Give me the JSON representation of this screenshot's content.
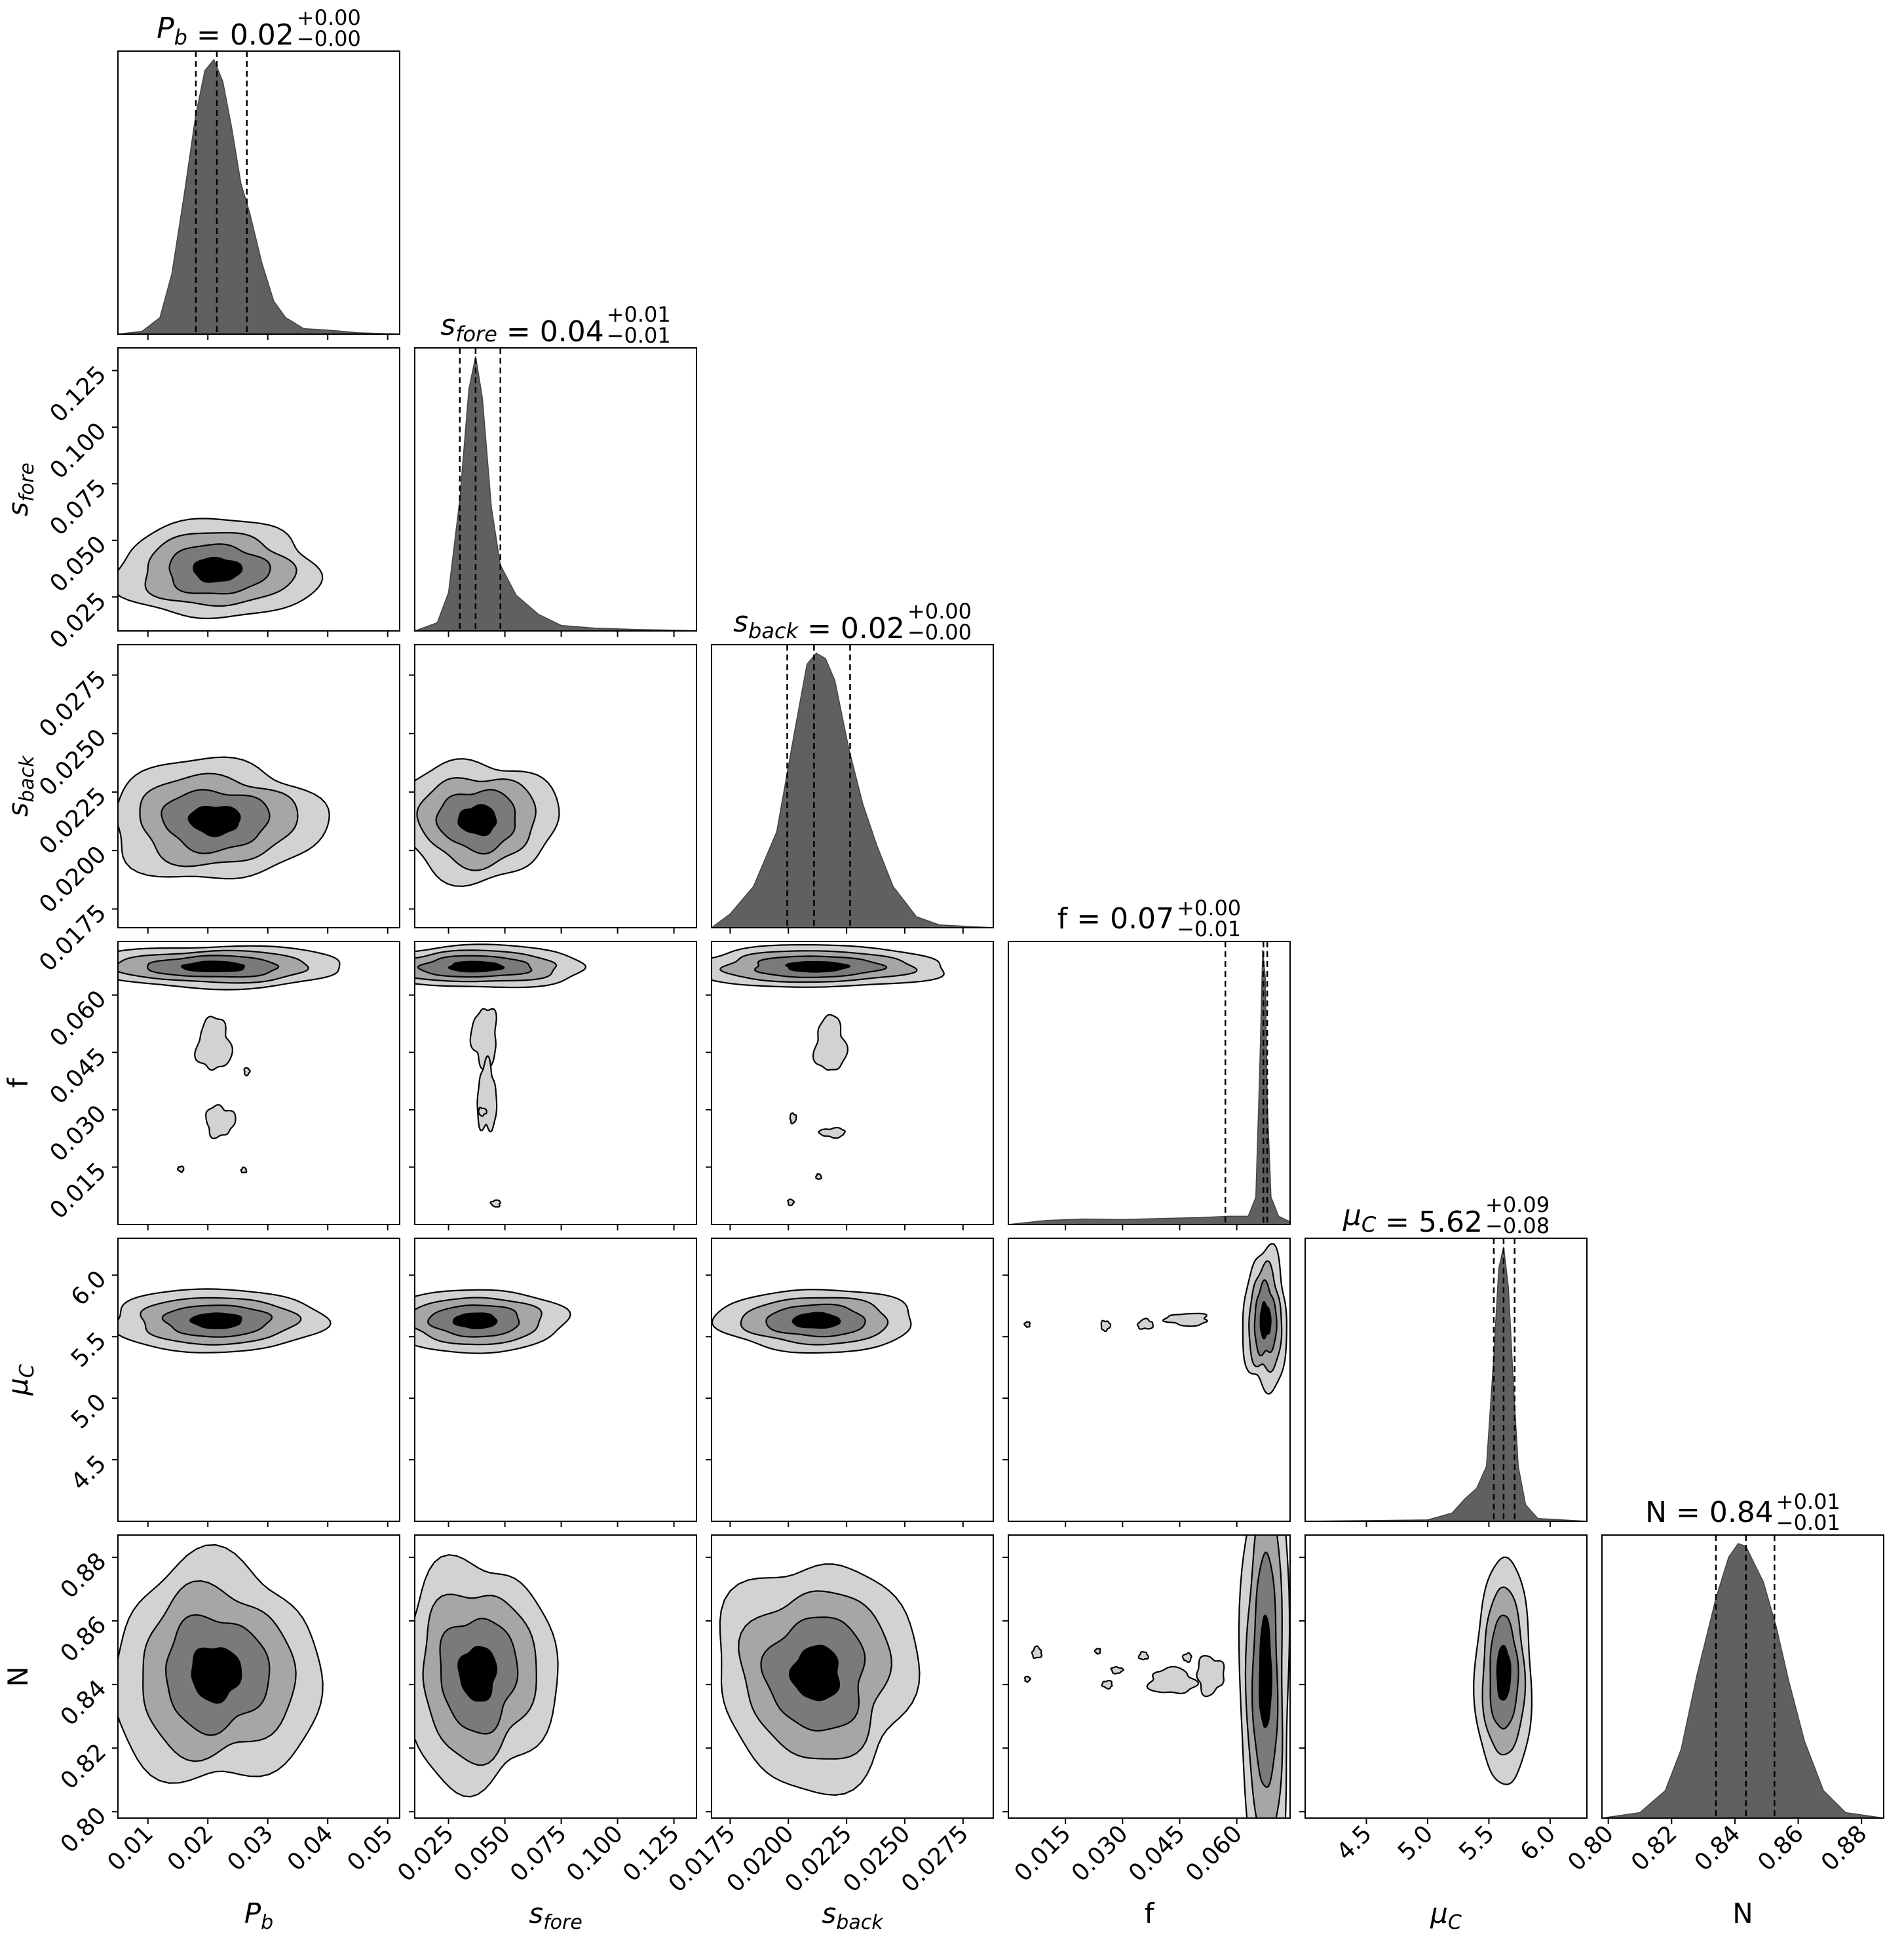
{
  "chart_data": {
    "type": "corner",
    "params": [
      {
        "key": "Pb",
        "label_html": "P<tspan font-style='italic' font-size='34' dy='10'></tspan>",
        "label": "P_b",
        "range": [
          0.005,
          0.052
        ],
        "ticks": [
          0.01,
          0.02,
          0.03,
          0.04,
          0.05
        ],
        "tick_labels": [
          "0.01",
          "0.02",
          "0.03",
          "0.04",
          "0.05"
        ]
      },
      {
        "key": "sfore",
        "label": "s_fore",
        "range": [
          0.01,
          0.135
        ],
        "ticks": [
          0.025,
          0.05,
          0.075,
          0.1,
          0.125
        ],
        "tick_labels": [
          "0.025",
          "0.050",
          "0.075",
          "0.100",
          "0.125"
        ]
      },
      {
        "key": "sback",
        "label": "s_back",
        "range": [
          0.0167,
          0.0288
        ],
        "ticks": [
          0.0175,
          0.02,
          0.0225,
          0.025,
          0.0275
        ],
        "tick_labels": [
          "0.0175",
          "0.0200",
          "0.0225",
          "0.0250",
          "0.0275"
        ]
      },
      {
        "key": "f",
        "label": "f",
        "range": [
          0.0,
          0.074
        ],
        "ticks": [
          0.015,
          0.03,
          0.045,
          0.06
        ],
        "tick_labels": [
          "0.015",
          "0.030",
          "0.045",
          "0.060"
        ]
      },
      {
        "key": "muC",
        "label": "μ_C",
        "range": [
          4.0,
          6.3
        ],
        "ticks": [
          4.5,
          5.0,
          5.5,
          6.0
        ],
        "tick_labels": [
          "4.5",
          "5.0",
          "5.5",
          "6.0"
        ]
      },
      {
        "key": "N",
        "label": "N",
        "range": [
          0.798,
          0.887
        ],
        "ticks": [
          0.8,
          0.82,
          0.84,
          0.86,
          0.88
        ],
        "tick_labels": [
          "0.80",
          "0.82",
          "0.84",
          "0.86",
          "0.88"
        ]
      }
    ],
    "titles": [
      {
        "name": "P_b",
        "value": "0.02",
        "plus": "+0.00",
        "minus": "−0.00"
      },
      {
        "name": "s_fore",
        "value": "0.04",
        "plus": "+0.01",
        "minus": "−0.01"
      },
      {
        "name": "s_back",
        "value": "0.02",
        "plus": "+0.00",
        "minus": "−0.00"
      },
      {
        "name": "f",
        "value": "0.07",
        "plus": "+0.00",
        "minus": "−0.01"
      },
      {
        "name": "μ_C",
        "value": "5.62",
        "plus": "+0.09",
        "minus": "−0.08"
      },
      {
        "name": "N",
        "value": "0.84",
        "plus": "+0.01",
        "minus": "−0.01"
      }
    ],
    "quantiles": [
      [
        0.018,
        0.0215,
        0.0265
      ],
      [
        0.03,
        0.037,
        0.048
      ],
      [
        0.01995,
        0.0211,
        0.02265
      ],
      [
        0.057,
        0.067,
        0.068
      ],
      [
        5.54,
        5.62,
        5.71
      ],
      [
        0.834,
        0.8435,
        0.8525
      ]
    ],
    "histograms": [
      {
        "x": [
          0.005,
          0.009,
          0.012,
          0.014,
          0.016,
          0.018,
          0.0195,
          0.021,
          0.0225,
          0.024,
          0.0255,
          0.027,
          0.029,
          0.031,
          0.033,
          0.036,
          0.04,
          0.045,
          0.052
        ],
        "y": [
          0,
          0.01,
          0.06,
          0.22,
          0.5,
          0.8,
          0.96,
          1.0,
          0.92,
          0.75,
          0.55,
          0.44,
          0.26,
          0.12,
          0.06,
          0.02,
          0.015,
          0.005,
          0
        ]
      },
      {
        "x": [
          0.01,
          0.02,
          0.025,
          0.03,
          0.034,
          0.037,
          0.04,
          0.044,
          0.048,
          0.055,
          0.065,
          0.075,
          0.09,
          0.11,
          0.13,
          0.135
        ],
        "y": [
          0,
          0.03,
          0.14,
          0.48,
          0.88,
          1.0,
          0.85,
          0.45,
          0.24,
          0.13,
          0.06,
          0.02,
          0.01,
          0.005,
          0.002,
          0
        ]
      },
      {
        "x": [
          0.0167,
          0.0175,
          0.0185,
          0.0195,
          0.0203,
          0.0208,
          0.0212,
          0.0216,
          0.022,
          0.0226,
          0.0232,
          0.0238,
          0.0245,
          0.0255,
          0.0265,
          0.0288
        ],
        "y": [
          0,
          0.05,
          0.15,
          0.35,
          0.73,
          0.96,
          1.0,
          0.98,
          0.9,
          0.65,
          0.45,
          0.3,
          0.15,
          0.04,
          0.01,
          0
        ]
      },
      {
        "x": [
          0.0,
          0.01,
          0.02,
          0.03,
          0.04,
          0.05,
          0.058,
          0.063,
          0.065,
          0.066,
          0.0668,
          0.0675,
          0.068,
          0.069,
          0.071,
          0.074
        ],
        "y": [
          0,
          0.015,
          0.02,
          0.018,
          0.022,
          0.025,
          0.03,
          0.03,
          0.1,
          0.55,
          1.0,
          0.9,
          0.45,
          0.1,
          0.03,
          0.01
        ]
      },
      {
        "x": [
          4.0,
          5.0,
          5.2,
          5.3,
          5.4,
          5.48,
          5.54,
          5.58,
          5.62,
          5.66,
          5.7,
          5.74,
          5.8,
          5.9,
          6.3
        ],
        "y": [
          0,
          0.005,
          0.03,
          0.08,
          0.12,
          0.2,
          0.6,
          0.92,
          1.0,
          0.85,
          0.5,
          0.2,
          0.06,
          0.01,
          0
        ]
      },
      {
        "x": [
          0.798,
          0.81,
          0.818,
          0.823,
          0.828,
          0.834,
          0.838,
          0.841,
          0.8435,
          0.846,
          0.849,
          0.853,
          0.857,
          0.862,
          0.868,
          0.875,
          0.887
        ],
        "y": [
          0,
          0.02,
          0.1,
          0.25,
          0.52,
          0.8,
          0.95,
          1.0,
          0.99,
          0.93,
          0.86,
          0.7,
          0.5,
          0.28,
          0.1,
          0.02,
          0
        ]
      }
    ],
    "contour_levels": [
      "0.5σ",
      "1σ",
      "1.5σ",
      "2σ"
    ],
    "contour_fills": [
      "#000000",
      "#7a7a7a",
      "#a6a6a6",
      "#d2d2d2"
    ],
    "blobs": [
      {
        "row": 1,
        "col": 0,
        "cx": 0.0215,
        "cy": 0.037,
        "sx": 0.0073,
        "sy": 0.0095,
        "bump": 0.06
      },
      {
        "row": 2,
        "col": 0,
        "cx": 0.0212,
        "cy": 0.0213,
        "sx": 0.0077,
        "sy": 0.00112,
        "bump": 0.07
      },
      {
        "row": 2,
        "col": 1,
        "cx": 0.038,
        "cy": 0.0213,
        "sx": 0.0152,
        "sy": 0.00112,
        "bump": 0.07
      },
      {
        "row": 3,
        "col": 0,
        "cx": 0.021,
        "cy": 0.0674,
        "sx": 0.0095,
        "sy": 0.0024,
        "bump": 0.05
      },
      {
        "row": 3,
        "col": 1,
        "cx": 0.037,
        "cy": 0.0674,
        "sx": 0.0215,
        "sy": 0.0024,
        "bump": 0.05
      },
      {
        "row": 3,
        "col": 2,
        "cx": 0.0212,
        "cy": 0.0674,
        "sx": 0.0024,
        "sy": 0.0024,
        "bump": 0.05
      },
      {
        "row": 4,
        "col": 0,
        "cx": 0.0215,
        "cy": 5.63,
        "sx": 0.0077,
        "sy": 0.112,
        "bump": 0.04
      },
      {
        "row": 4,
        "col": 1,
        "cx": 0.037,
        "cy": 5.63,
        "sx": 0.0175,
        "sy": 0.112,
        "bump": 0.04
      },
      {
        "row": 4,
        "col": 2,
        "cx": 0.0212,
        "cy": 5.63,
        "sx": 0.00185,
        "sy": 0.112,
        "bump": 0.04
      },
      {
        "row": 4,
        "col": 3,
        "cx": 0.0675,
        "cy": 5.63,
        "sx": 0.0025,
        "sy": 0.25,
        "bump": 0.08
      },
      {
        "row": 5,
        "col": 0,
        "cx": 0.0213,
        "cy": 0.8435,
        "sx": 0.0075,
        "sy": 0.0155,
        "bump": 0.07
      },
      {
        "row": 5,
        "col": 1,
        "cx": 0.038,
        "cy": 0.8435,
        "sx": 0.0148,
        "sy": 0.0155,
        "bump": 0.07
      },
      {
        "row": 5,
        "col": 2,
        "cx": 0.0212,
        "cy": 0.8435,
        "sx": 0.00185,
        "sy": 0.0155,
        "bump": 0.07
      },
      {
        "row": 5,
        "col": 3,
        "cx": 0.0675,
        "cy": 0.8435,
        "sx": 0.0028,
        "sy": 0.032,
        "bump": 0.05
      },
      {
        "row": 5,
        "col": 4,
        "cx": 5.62,
        "cy": 0.8435,
        "sx": 0.1,
        "sy": 0.0155,
        "bump": 0.04
      }
    ],
    "islands": [
      {
        "row": 3,
        "col": 0,
        "cx": 0.021,
        "cy": 0.047,
        "sx": 0.0028,
        "sy": 0.0068
      },
      {
        "row": 3,
        "col": 0,
        "cx": 0.022,
        "cy": 0.027,
        "sx": 0.0024,
        "sy": 0.004
      },
      {
        "row": 3,
        "col": 0,
        "cx": 0.0155,
        "cy": 0.0145,
        "sx": 0.0005,
        "sy": 0.0005
      },
      {
        "row": 3,
        "col": 0,
        "cx": 0.026,
        "cy": 0.0142,
        "sx": 0.0004,
        "sy": 0.0005
      },
      {
        "row": 3,
        "col": 0,
        "cx": 0.0265,
        "cy": 0.04,
        "sx": 0.0004,
        "sy": 0.001
      },
      {
        "row": 3,
        "col": 1,
        "cx": 0.041,
        "cy": 0.049,
        "sx": 0.0055,
        "sy": 0.0078
      },
      {
        "row": 3,
        "col": 1,
        "cx": 0.042,
        "cy": 0.033,
        "sx": 0.0042,
        "sy": 0.009
      },
      {
        "row": 3,
        "col": 1,
        "cx": 0.04,
        "cy": 0.0295,
        "sx": 0.0018,
        "sy": 0.001
      },
      {
        "row": 3,
        "col": 1,
        "cx": 0.046,
        "cy": 0.0055,
        "sx": 0.002,
        "sy": 0.0009
      },
      {
        "row": 3,
        "col": 2,
        "cx": 0.0218,
        "cy": 0.047,
        "sx": 0.00065,
        "sy": 0.0072
      },
      {
        "row": 3,
        "col": 2,
        "cx": 0.0202,
        "cy": 0.0278,
        "sx": 0.00013,
        "sy": 0.0013
      },
      {
        "row": 3,
        "col": 2,
        "cx": 0.0219,
        "cy": 0.024,
        "sx": 0.00055,
        "sy": 0.0012
      },
      {
        "row": 3,
        "col": 2,
        "cx": 0.0213,
        "cy": 0.0125,
        "sx": 9e-05,
        "sy": 0.0006
      },
      {
        "row": 3,
        "col": 2,
        "cx": 0.0201,
        "cy": 0.0058,
        "sx": 0.00012,
        "sy": 0.0008
      },
      {
        "row": 4,
        "col": 3,
        "cx": 0.047,
        "cy": 5.64,
        "sx": 0.0055,
        "sy": 0.05
      },
      {
        "row": 4,
        "col": 3,
        "cx": 0.036,
        "cy": 5.6,
        "sx": 0.002,
        "sy": 0.04
      },
      {
        "row": 4,
        "col": 3,
        "cx": 0.0255,
        "cy": 5.59,
        "sx": 0.0012,
        "sy": 0.04
      },
      {
        "row": 4,
        "col": 3,
        "cx": 0.005,
        "cy": 5.6,
        "sx": 0.0005,
        "sy": 0.02
      },
      {
        "row": 5,
        "col": 3,
        "cx": 0.043,
        "cy": 0.841,
        "sx": 0.006,
        "sy": 0.004
      },
      {
        "row": 5,
        "col": 3,
        "cx": 0.053,
        "cy": 0.843,
        "sx": 0.0035,
        "sy": 0.006
      },
      {
        "row": 5,
        "col": 3,
        "cx": 0.047,
        "cy": 0.8485,
        "sx": 0.0011,
        "sy": 0.0013
      },
      {
        "row": 5,
        "col": 3,
        "cx": 0.0355,
        "cy": 0.849,
        "sx": 0.0012,
        "sy": 0.0012
      },
      {
        "row": 5,
        "col": 3,
        "cx": 0.0285,
        "cy": 0.8445,
        "sx": 0.0015,
        "sy": 0.001
      },
      {
        "row": 5,
        "col": 3,
        "cx": 0.026,
        "cy": 0.84,
        "sx": 0.0013,
        "sy": 0.0012
      },
      {
        "row": 5,
        "col": 3,
        "cx": 0.0075,
        "cy": 0.85,
        "sx": 0.0012,
        "sy": 0.0018
      },
      {
        "row": 5,
        "col": 3,
        "cx": 0.005,
        "cy": 0.8417,
        "sx": 0.0005,
        "sy": 0.0008
      },
      {
        "row": 5,
        "col": 3,
        "cx": 0.0235,
        "cy": 0.8505,
        "sx": 0.0003,
        "sy": 0.0005
      }
    ]
  }
}
